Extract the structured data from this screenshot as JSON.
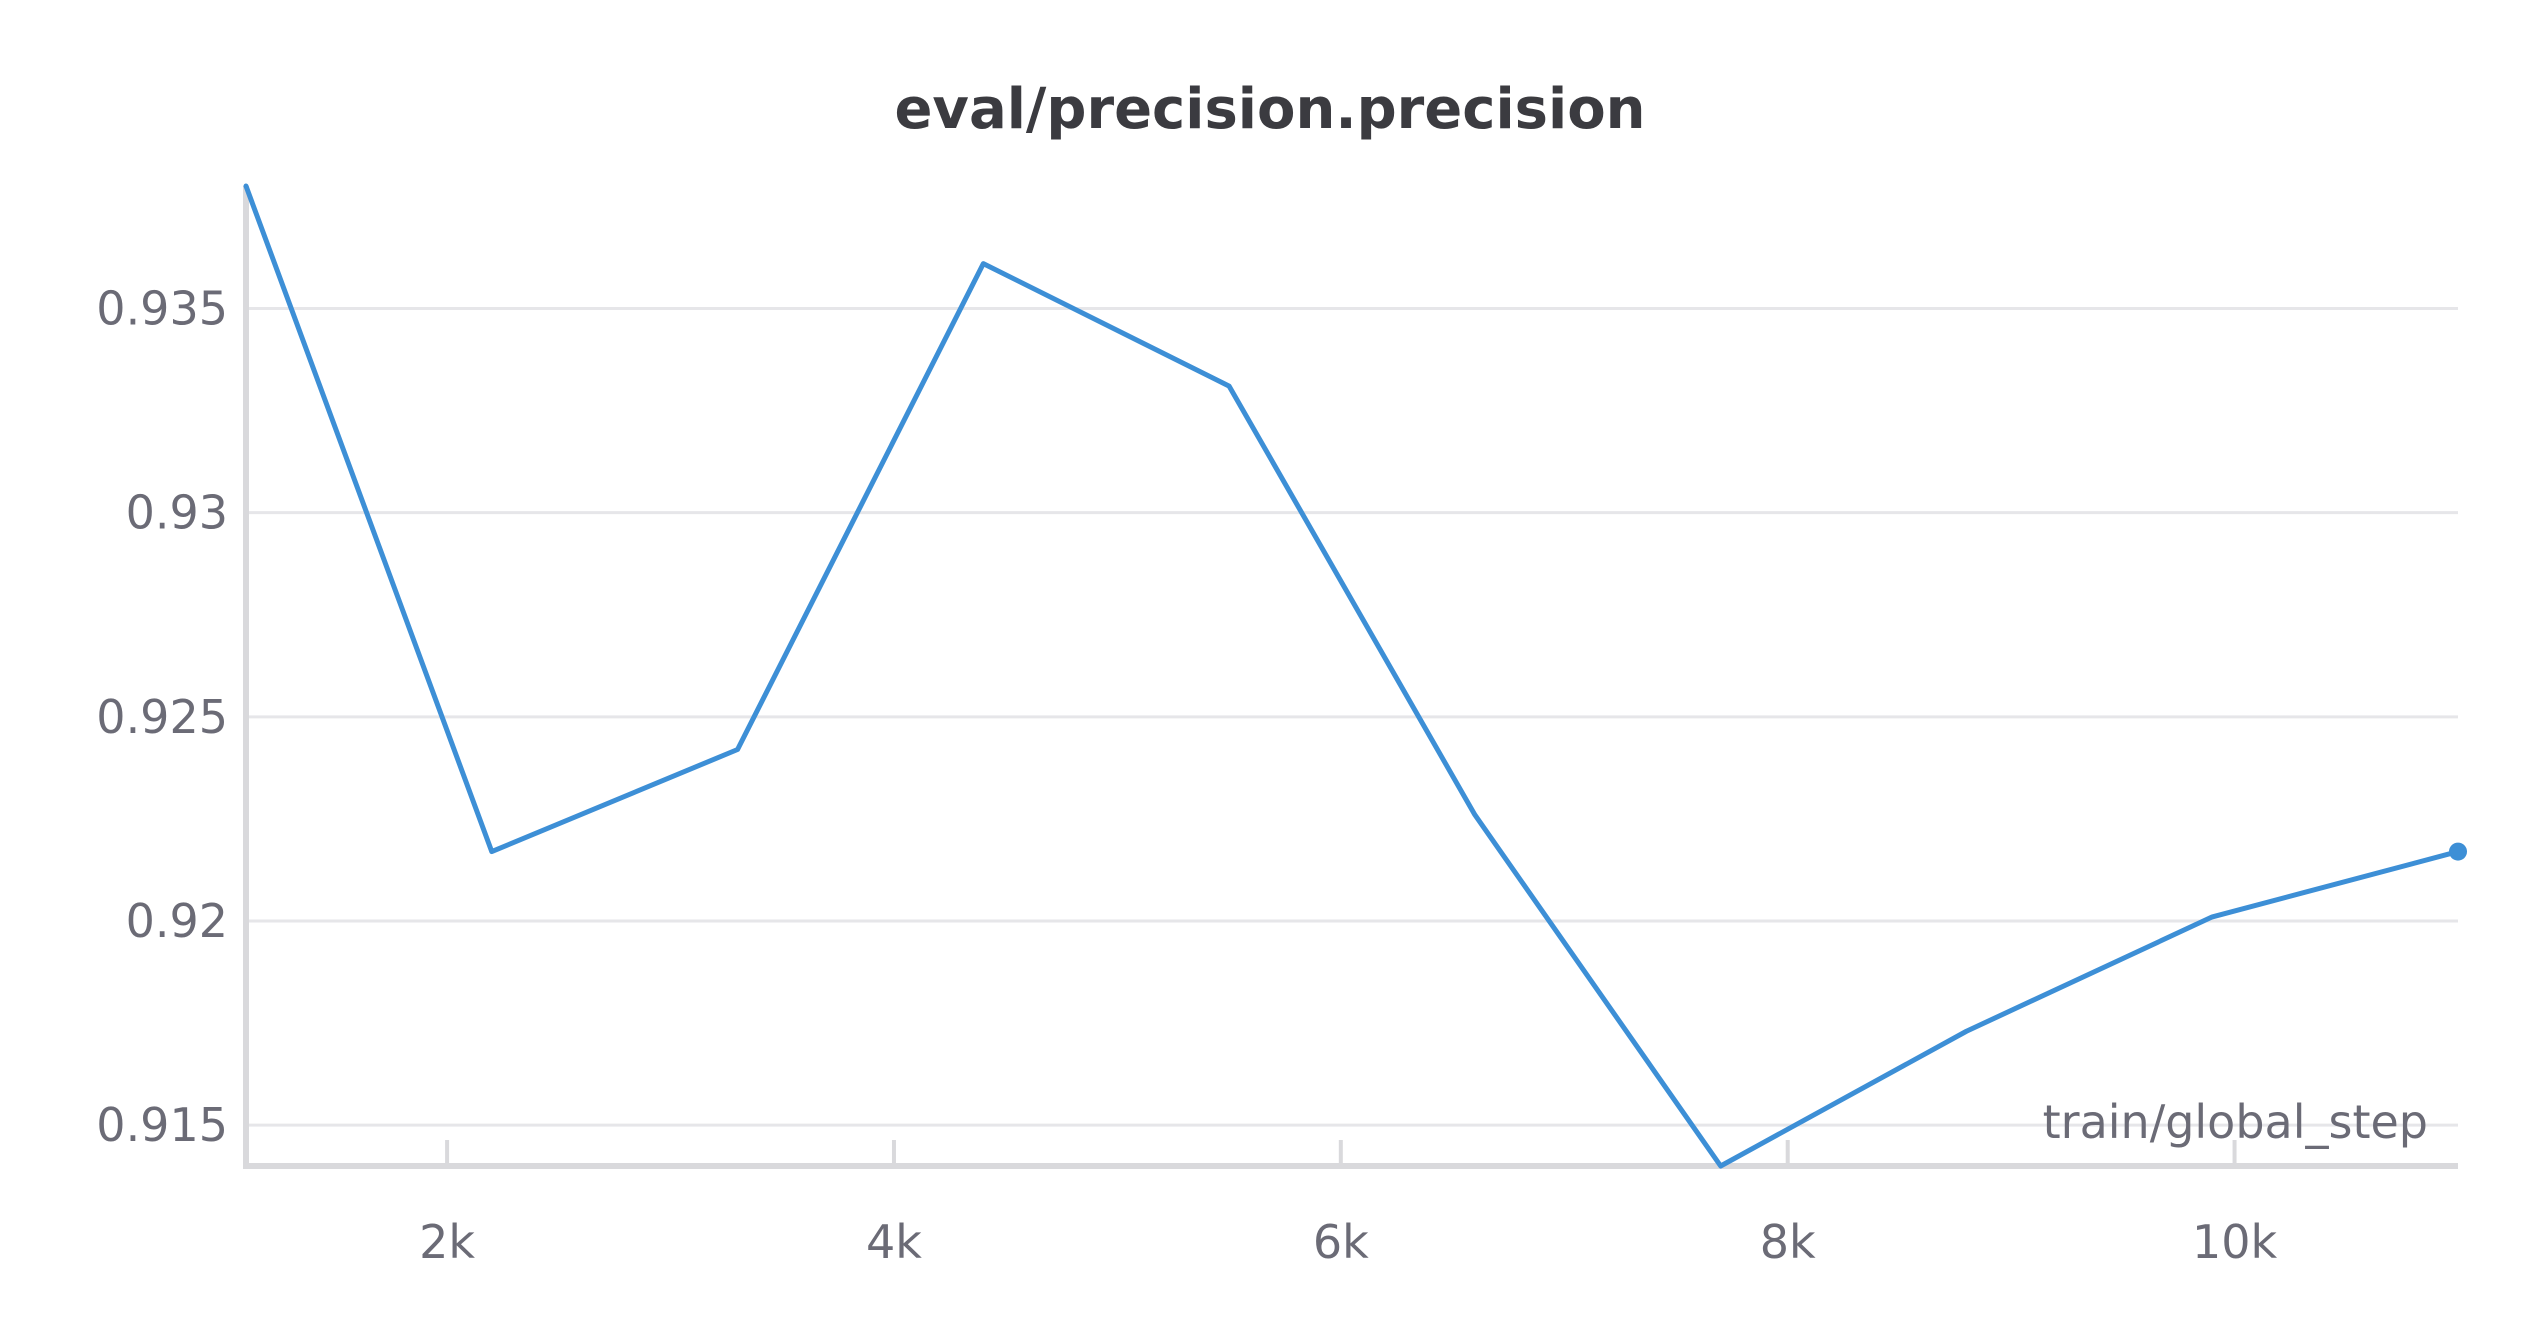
{
  "chart_data": {
    "type": "line",
    "title": "eval/precision.precision",
    "xlabel": "train/global_step",
    "ylabel": "",
    "xlim": [
      1100,
      11000
    ],
    "ylim": [
      0.914,
      0.938
    ],
    "x_ticks": [
      {
        "value": 2000,
        "label": "2k"
      },
      {
        "value": 4000,
        "label": "4k"
      },
      {
        "value": 6000,
        "label": "6k"
      },
      {
        "value": 8000,
        "label": "8k"
      },
      {
        "value": 10000,
        "label": "10k"
      }
    ],
    "y_ticks": [
      {
        "value": 0.915,
        "label": "0.915"
      },
      {
        "value": 0.92,
        "label": "0.92"
      },
      {
        "value": 0.925,
        "label": "0.925"
      },
      {
        "value": 0.93,
        "label": "0.93"
      },
      {
        "value": 0.935,
        "label": "0.935"
      }
    ],
    "grid": true,
    "series": [
      {
        "color": "#3d8fd6",
        "x": [
          1100,
          2200,
          3300,
          4400,
          5500,
          6600,
          7700,
          8800,
          9900,
          11000
        ],
        "y": [
          0.938,
          0.9217,
          0.9242,
          0.9361,
          0.9331,
          0.9226,
          0.914,
          0.9173,
          0.9201,
          0.9217
        ]
      }
    ]
  }
}
